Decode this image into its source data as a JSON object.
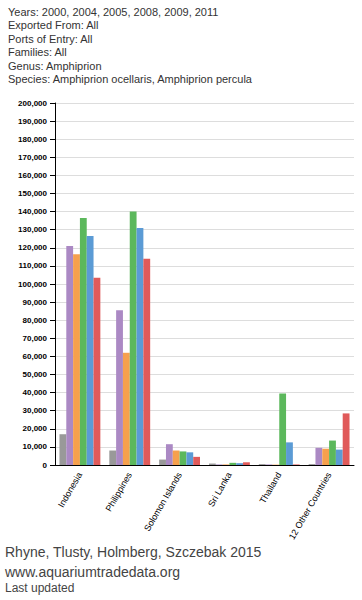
{
  "chart_data": {
    "type": "bar",
    "subtitle": [
      "Years: 2000, 2004, 2005, 2008, 2009, 2011",
      "Exported From: All",
      "Ports of Entry: All",
      "Families: All",
      "Genus: Amphiprion",
      "Species: Amphiprion ocellaris, Amphiprion percula"
    ],
    "annotations": [
      "Rhyne, Tlusty, Holmberg, Szczebak 2015",
      "www.aquariumtradedata.org",
      "Last updated"
    ],
    "categories": [
      "Indonesia",
      "Philippines",
      "Solomon Islands",
      "Sri Lanka",
      "Thailand",
      "12 Other Countries"
    ],
    "series": [
      {
        "color": "#999999",
        "values": [
          17000,
          8000,
          3000,
          800,
          500,
          500
        ]
      },
      {
        "color": "#ab89c4",
        "values": [
          121000,
          85500,
          11500,
          300,
          300,
          9500
        ]
      },
      {
        "color": "#f6a04d",
        "values": [
          116500,
          62000,
          8000,
          300,
          200,
          9000
        ]
      },
      {
        "color": "#5cb85c",
        "values": [
          136500,
          140000,
          7500,
          1200,
          39500,
          13500
        ]
      },
      {
        "color": "#5b9bd5",
        "values": [
          126500,
          131000,
          7000,
          1000,
          12500,
          8500
        ]
      },
      {
        "color": "#e05a5a",
        "values": [
          103500,
          114000,
          4500,
          1500,
          300,
          28500
        ]
      }
    ],
    "ylim": [
      0,
      200000
    ],
    "yticks": [
      0,
      {
        "value": 10000,
        "label": "10,000"
      },
      {
        "value": 20000,
        "label": "20,000"
      },
      {
        "value": 30000,
        "label": "30,000"
      },
      {
        "value": 40000,
        "label": "40,000"
      },
      {
        "value": 50000,
        "label": "50,000"
      },
      {
        "value": 60000,
        "label": "60,000"
      },
      {
        "value": 70000,
        "label": "70,000"
      },
      {
        "value": 80000,
        "label": "80,000"
      },
      {
        "value": 90000,
        "label": "90,000"
      },
      {
        "value": 100000,
        "label": "100,000"
      },
      {
        "value": 110000,
        "label": "110,000"
      },
      {
        "value": 120000,
        "label": "120,000"
      },
      {
        "value": 130000,
        "label": "130,000"
      },
      {
        "value": 140000,
        "label": "140,000"
      },
      {
        "value": 150000,
        "label": "150,000"
      },
      {
        "value": 160000,
        "label": "160,000"
      },
      {
        "value": 170000,
        "label": "170,000"
      },
      {
        "value": 180000,
        "label": "180,000"
      },
      {
        "value": 190000,
        "label": "190,000"
      },
      {
        "value": 200000,
        "label": "200,000"
      }
    ],
    "grid": true
  }
}
